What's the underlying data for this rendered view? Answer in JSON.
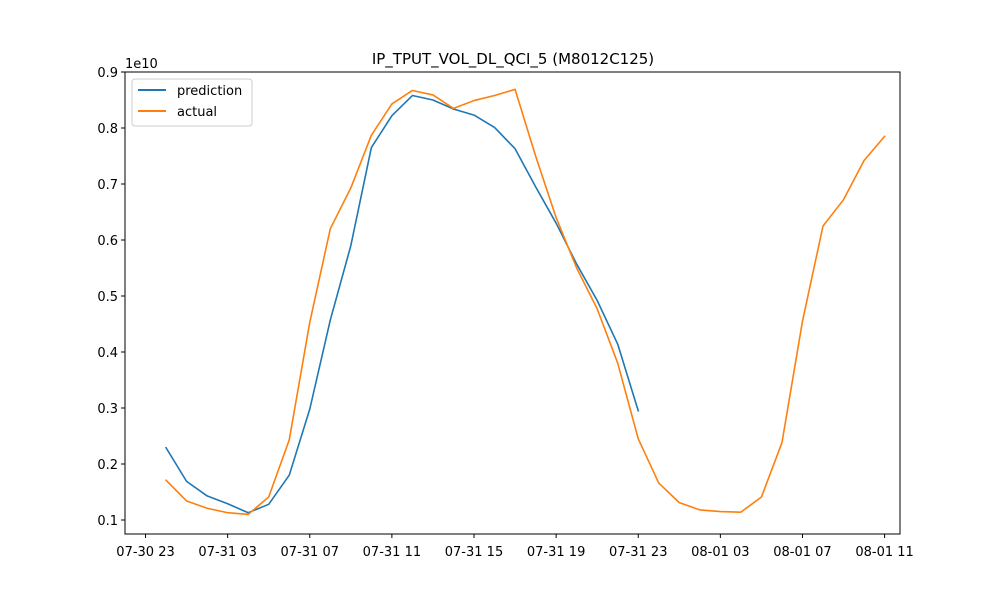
{
  "chart_data": {
    "type": "line",
    "title": "IP_TPUT_VOL_DL_QCI_5 (M8012C125)",
    "xlabel": "",
    "ylabel": "",
    "y_offset_text": "1e10",
    "y_multiplier": 10000000000,
    "ylim": [
      0.075,
      0.9
    ],
    "xlim": [
      "2023-07-30T22:00",
      "2023-08-01T11:45"
    ],
    "yticks": [
      0.1,
      0.2,
      0.3,
      0.4,
      0.5,
      0.6,
      0.7,
      0.8,
      0.9
    ],
    "xticks": [
      {
        "t": "2023-07-30T23:00",
        "label": "07-30 23"
      },
      {
        "t": "2023-07-31T03:00",
        "label": "07-31 03"
      },
      {
        "t": "2023-07-31T07:00",
        "label": "07-31 07"
      },
      {
        "t": "2023-07-31T11:00",
        "label": "07-31 11"
      },
      {
        "t": "2023-07-31T15:00",
        "label": "07-31 15"
      },
      {
        "t": "2023-07-31T19:00",
        "label": "07-31 19"
      },
      {
        "t": "2023-07-31T23:00",
        "label": "07-31 23"
      },
      {
        "t": "2023-08-01T03:00",
        "label": "08-01 03"
      },
      {
        "t": "2023-08-01T07:00",
        "label": "08-01 07"
      },
      {
        "t": "2023-08-01T11:00",
        "label": "08-01 11"
      }
    ],
    "grid": false,
    "legend_position": "top-left",
    "series": [
      {
        "name": "prediction",
        "color": "#1f77b4",
        "x": [
          "2023-07-31T00:00",
          "2023-07-31T01:00",
          "2023-07-31T02:00",
          "2023-07-31T03:00",
          "2023-07-31T04:00",
          "2023-07-31T05:00",
          "2023-07-31T06:00",
          "2023-07-31T07:00",
          "2023-07-31T08:00",
          "2023-07-31T09:00",
          "2023-07-31T10:00",
          "2023-07-31T11:00",
          "2023-07-31T12:00",
          "2023-07-31T13:00",
          "2023-07-31T14:00",
          "2023-07-31T15:00",
          "2023-07-31T16:00",
          "2023-07-31T17:00",
          "2023-07-31T18:00",
          "2023-07-31T19:00",
          "2023-07-31T20:00",
          "2023-07-31T21:00",
          "2023-07-31T22:00",
          "2023-07-31T23:00"
        ],
        "values": [
          0.229,
          0.169,
          0.143,
          0.129,
          0.113,
          0.128,
          0.18,
          0.298,
          0.457,
          0.59,
          0.765,
          0.822,
          0.858,
          0.85,
          0.834,
          0.823,
          0.801,
          0.763,
          0.695,
          0.63,
          0.557,
          0.492,
          0.414,
          0.295
        ]
      },
      {
        "name": "actual",
        "color": "#ff7f0e",
        "x": [
          "2023-07-31T00:00",
          "2023-07-31T01:00",
          "2023-07-31T02:00",
          "2023-07-31T03:00",
          "2023-07-31T04:00",
          "2023-07-31T05:00",
          "2023-07-31T06:00",
          "2023-07-31T07:00",
          "2023-07-31T08:00",
          "2023-07-31T09:00",
          "2023-07-31T10:00",
          "2023-07-31T11:00",
          "2023-07-31T12:00",
          "2023-07-31T13:00",
          "2023-07-31T14:00",
          "2023-07-31T15:00",
          "2023-07-31T16:00",
          "2023-07-31T17:00",
          "2023-07-31T18:00",
          "2023-07-31T19:00",
          "2023-07-31T20:00",
          "2023-07-31T21:00",
          "2023-07-31T22:00",
          "2023-07-31T23:00",
          "2023-08-01T00:00",
          "2023-08-01T01:00",
          "2023-08-01T02:00",
          "2023-08-01T03:00",
          "2023-08-01T04:00",
          "2023-08-01T05:00",
          "2023-08-01T06:00",
          "2023-08-01T07:00",
          "2023-08-01T08:00",
          "2023-08-01T09:00",
          "2023-08-01T10:00",
          "2023-08-01T11:00"
        ],
        "values": [
          0.171,
          0.134,
          0.121,
          0.113,
          0.11,
          0.141,
          0.243,
          0.453,
          0.62,
          0.693,
          0.787,
          0.843,
          0.867,
          0.859,
          0.835,
          0.849,
          0.858,
          0.869,
          0.75,
          0.64,
          0.55,
          0.477,
          0.38,
          0.245,
          0.166,
          0.131,
          0.118,
          0.115,
          0.114,
          0.141,
          0.238,
          0.455,
          0.625,
          0.672,
          0.742,
          0.785
        ]
      }
    ]
  }
}
